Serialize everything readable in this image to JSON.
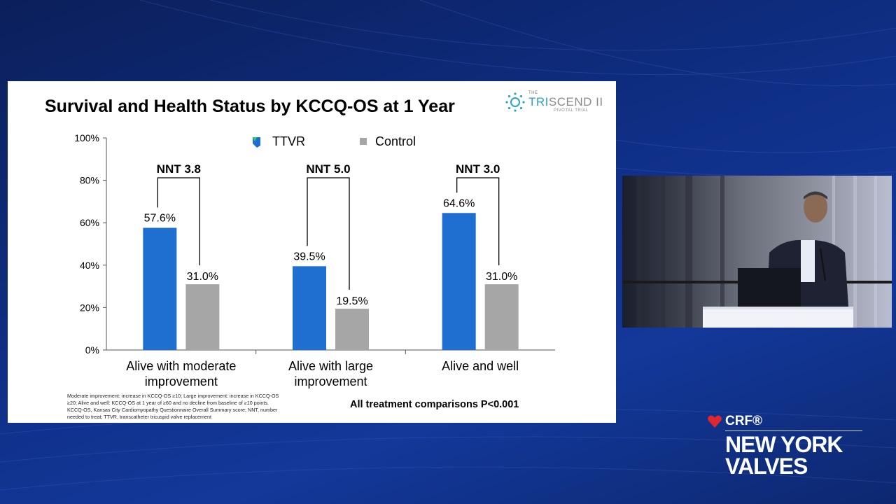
{
  "slide": {
    "title": "Survival and Health Status by KCCQ-OS at 1 Year",
    "logo": {
      "the": "THE",
      "name_prefix": "TRI",
      "name_suffix": "SCEND II",
      "sub": "PIVOTAL TRIAL"
    },
    "footnote": "Moderate improvement: increase in KCCQ-OS ≥10; Large improvement: increase in KCCQ-OS ≥20; Alive and well: KCCQ-OS at 1 year of ≥60 and no decline from baseline of ≥10 points. KCCQ-OS, Kansas City Cardiomyopathy Questionnaire Overall Summary score; NNT, number needed to treat; TTVR, transcatheter tricuspid valve replacement",
    "p_note": "All treatment comparisons P<0.001"
  },
  "brand": {
    "crf": "CRF®",
    "line1": "NEW YORK",
    "line2": "VALVES",
    "heart_color": "#e0262f"
  },
  "chart_data": {
    "type": "bar",
    "categories": [
      "Alive with moderate improvement",
      "Alive with large improvement",
      "Alive and well"
    ],
    "category_lines": [
      [
        "Alive with moderate",
        "improvement"
      ],
      [
        "Alive with large",
        "improvement"
      ],
      [
        "Alive and well"
      ]
    ],
    "series": [
      {
        "name": "TTVR",
        "color": "#1f6fd1",
        "values": [
          57.6,
          39.5,
          64.6
        ],
        "labels": [
          "57.6%",
          "39.5%",
          "64.6%"
        ]
      },
      {
        "name": "Control",
        "color": "#a6a6a6",
        "values": [
          31.0,
          19.5,
          31.0
        ],
        "labels": [
          "31.0%",
          "19.5%",
          "31.0%"
        ]
      }
    ],
    "nnt": [
      "NNT 3.8",
      "NNT 5.0",
      "NNT 3.0"
    ],
    "yticks": [
      "0%",
      "20%",
      "40%",
      "60%",
      "80%",
      "100%"
    ],
    "ylim": [
      0,
      100
    ],
    "legend": "top",
    "grid": false
  }
}
